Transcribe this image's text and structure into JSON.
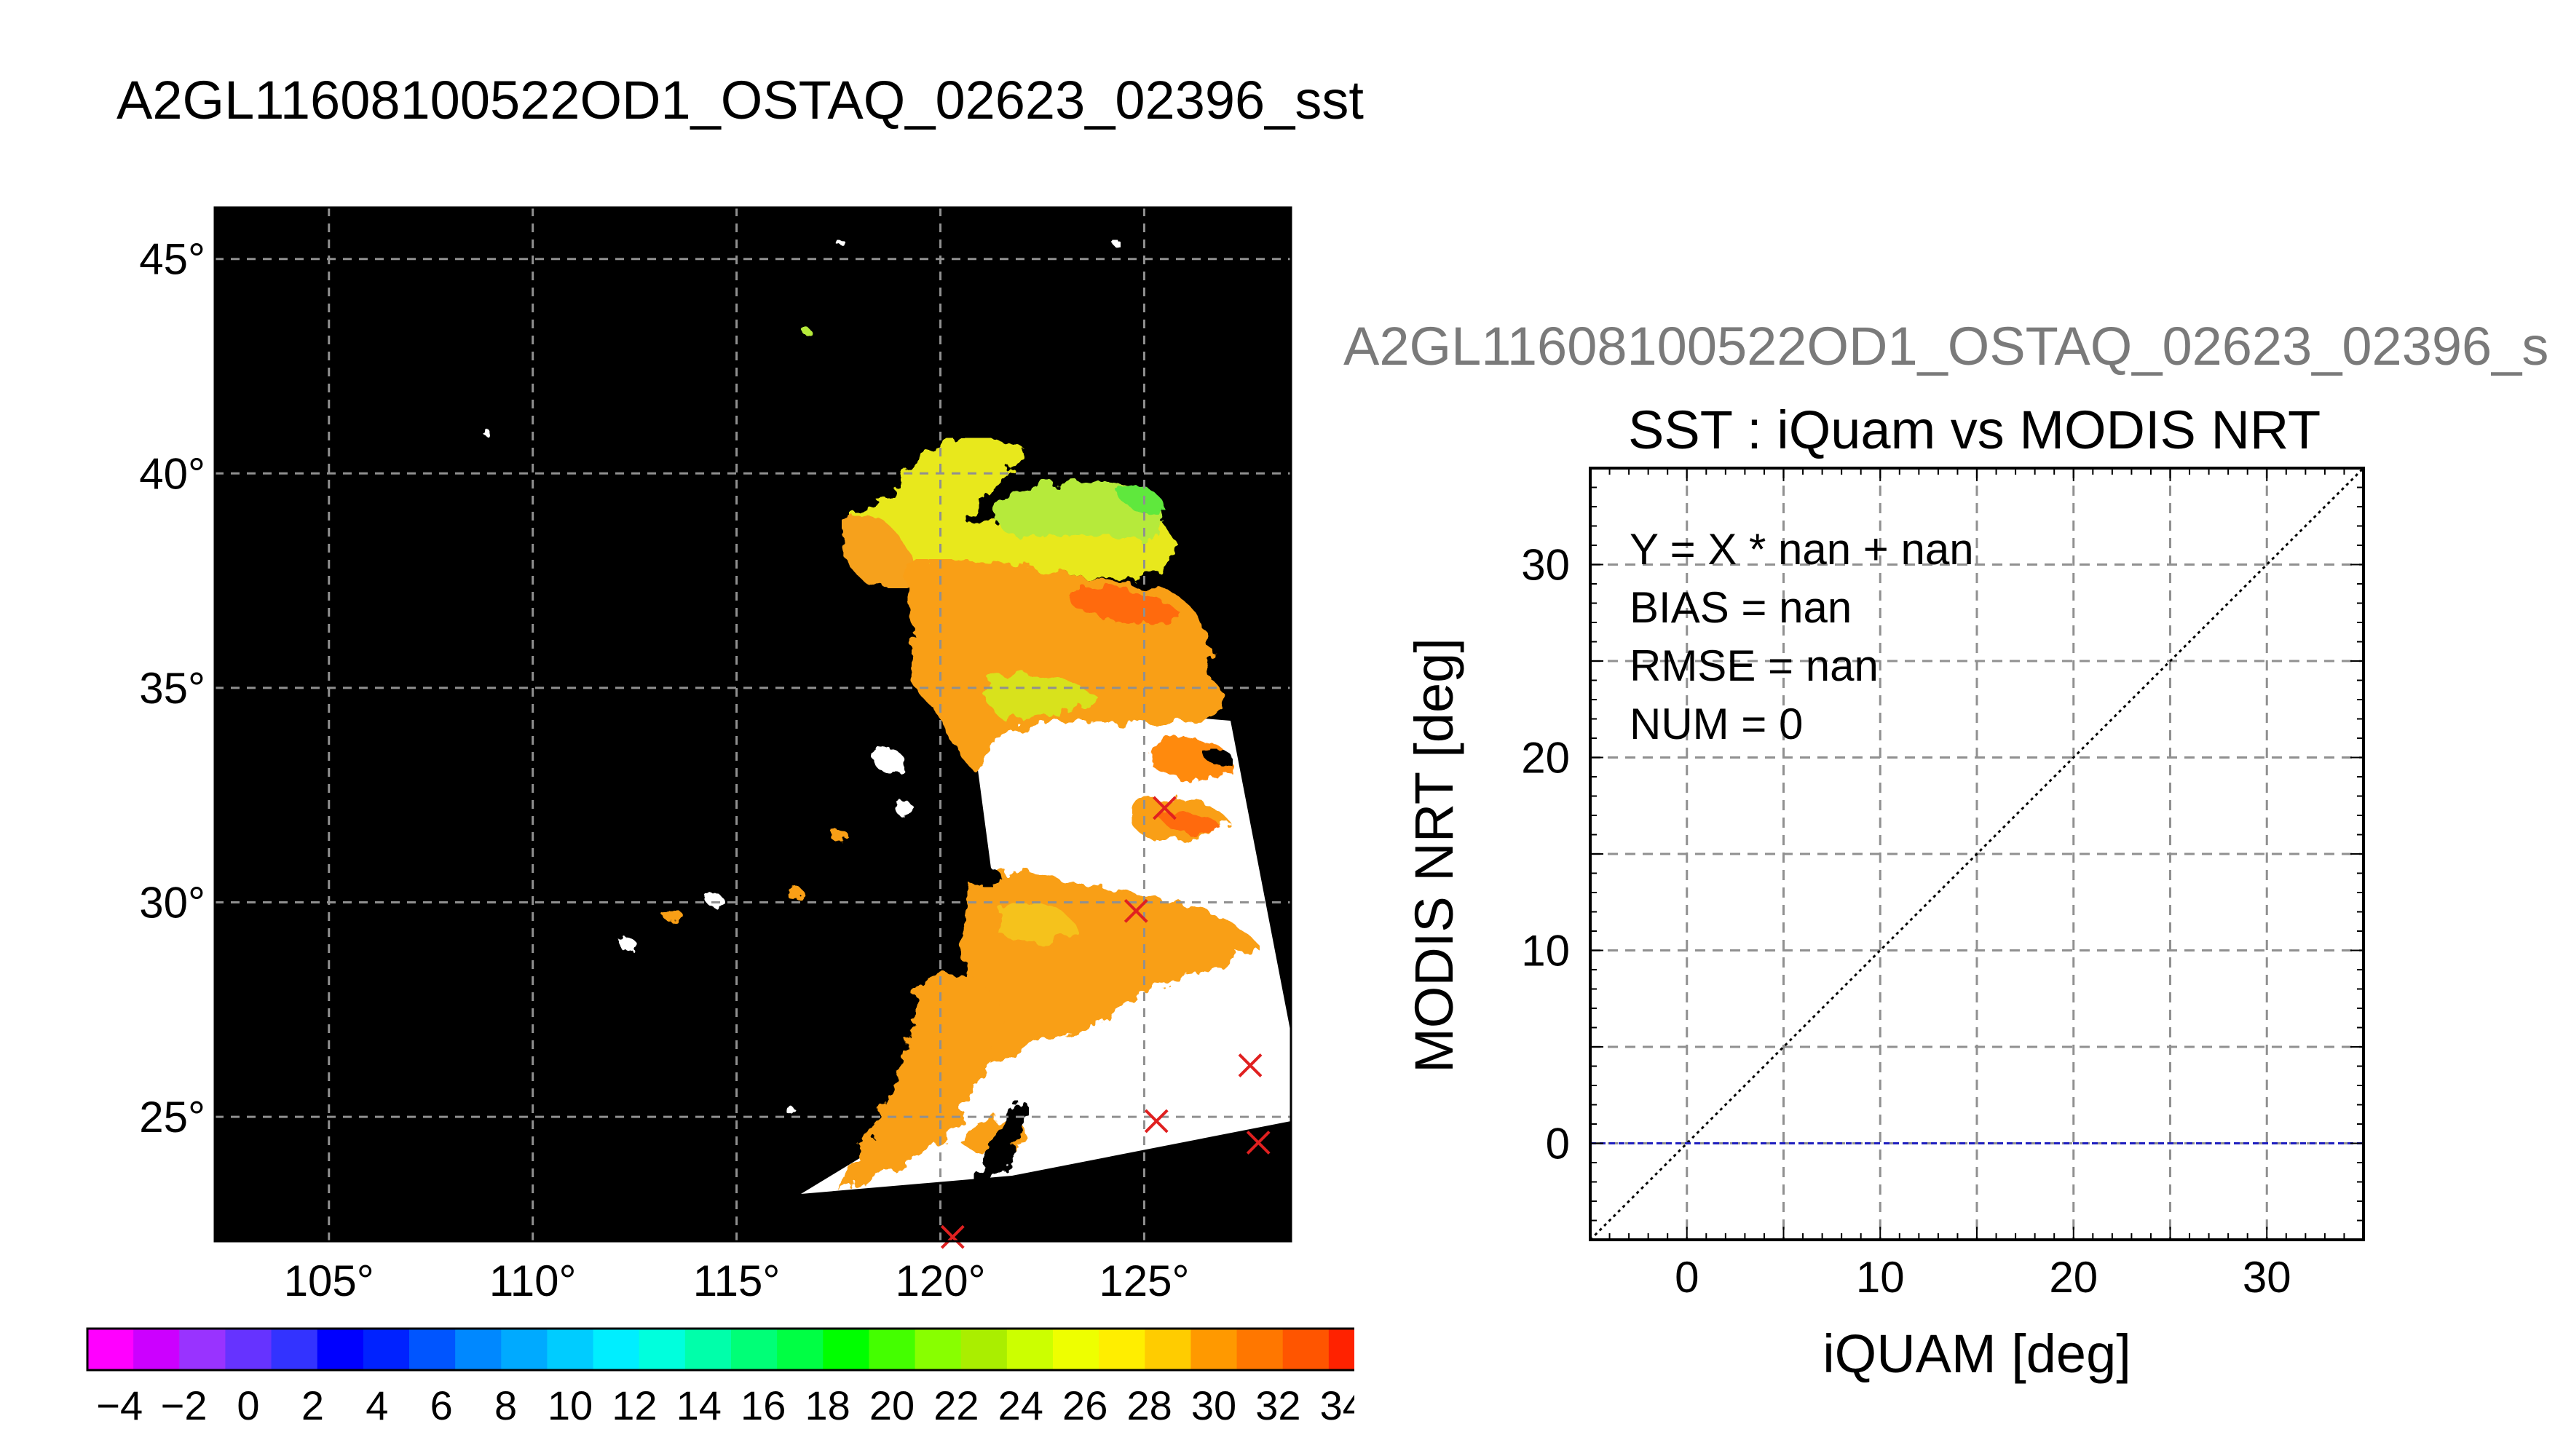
{
  "main_title": "A2GL11608100522OD1_OSTAQ_02623_02396_sst",
  "colors": {
    "land": "#000000",
    "no_data": "#ffffff",
    "marker": "#e02020",
    "one_to_one_line": "#000000",
    "zero_line": "#1f1fbf",
    "grid": "#909090"
  },
  "map": {
    "lat_ticks": [
      45,
      40,
      35,
      30,
      25
    ],
    "lon_ticks": [
      105,
      110,
      115,
      120,
      125
    ],
    "degree_symbol": "°",
    "lon_range": [
      102.2,
      128.6
    ],
    "lat_range": [
      22.1,
      46.2
    ],
    "markers": [
      {
        "lon": 125.5,
        "lat": 32.2
      },
      {
        "lon": 124.8,
        "lat": 29.8
      },
      {
        "lon": 127.6,
        "lat": 26.2
      },
      {
        "lon": 125.3,
        "lat": 24.9
      },
      {
        "lon": 127.8,
        "lat": 24.4
      },
      {
        "lon": 120.3,
        "lat": 22.2
      }
    ]
  },
  "colorbar": {
    "tick_labels": [
      "−4",
      "−2",
      "0",
      "2",
      "4",
      "6",
      "8",
      "10",
      "12",
      "14",
      "16",
      "18",
      "20",
      "22",
      "24",
      "26",
      "28",
      "30",
      "32",
      "34"
    ],
    "range": [
      -5,
      35
    ],
    "colors": [
      "#ff00ff",
      "#cc00ff",
      "#9933ff",
      "#6633ff",
      "#3333ff",
      "#0000ff",
      "#0022ff",
      "#0055ff",
      "#0088ff",
      "#00aaff",
      "#00ccff",
      "#00eeff",
      "#00ffdd",
      "#00ffaa",
      "#00ff77",
      "#00ff44",
      "#00ff00",
      "#44ff00",
      "#88ff00",
      "#aaee00",
      "#ccff00",
      "#eeff00",
      "#ffee00",
      "#ffcc00",
      "#ff9900",
      "#ff7700",
      "#ff5500",
      "#ff2200"
    ]
  },
  "chart_data": {
    "type": "scatter",
    "supertitle": "A2GL11608100522OD1_OSTAQ_02623_02396_s",
    "title": "SST : iQuam vs MODIS NRT",
    "xlabel": "iQUAM [deg]",
    "ylabel": "MODIS NRT [deg]",
    "xlim": [
      -5,
      35
    ],
    "ylim": [
      -5,
      35
    ],
    "x_ticks": [
      0,
      10,
      20,
      30
    ],
    "y_ticks": [
      0,
      10,
      20,
      30
    ],
    "grid": true,
    "points": [],
    "reference_lines": [
      {
        "kind": "y=x",
        "style": "dotted",
        "color": "#000000"
      },
      {
        "kind": "y=0",
        "style": "dashed",
        "color": "#1f1fbf"
      }
    ],
    "stats_lines": [
      "Y = X * nan + nan",
      "BIAS = nan",
      "RMSE = nan",
      "NUM = 0"
    ]
  }
}
